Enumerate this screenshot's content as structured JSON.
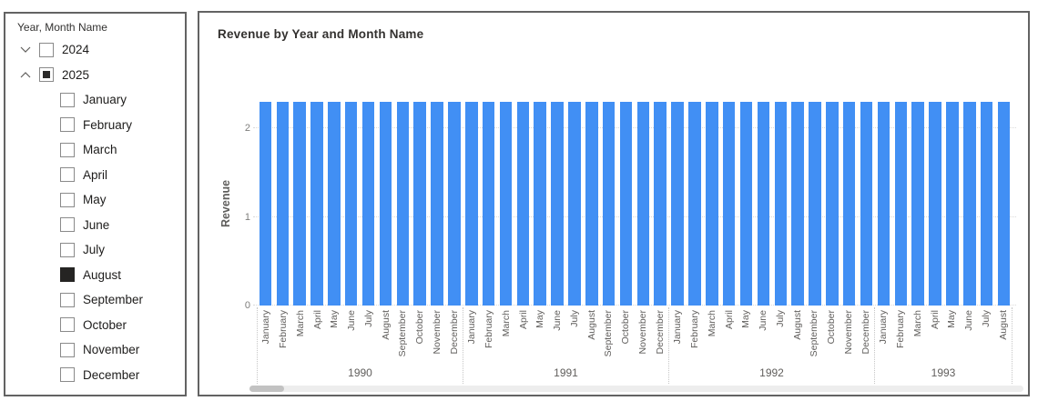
{
  "slicer": {
    "header": "Year, Month Name",
    "years": [
      {
        "label": "2024",
        "state": "unchecked",
        "chevron": "down"
      },
      {
        "label": "2025",
        "state": "partial",
        "chevron": "up"
      }
    ],
    "months": [
      {
        "label": "January",
        "checked": false
      },
      {
        "label": "February",
        "checked": false
      },
      {
        "label": "March",
        "checked": false
      },
      {
        "label": "April",
        "checked": false
      },
      {
        "label": "May",
        "checked": false
      },
      {
        "label": "June",
        "checked": false
      },
      {
        "label": "July",
        "checked": false
      },
      {
        "label": "August",
        "checked": true
      },
      {
        "label": "September",
        "checked": false
      },
      {
        "label": "October",
        "checked": false
      },
      {
        "label": "November",
        "checked": false
      },
      {
        "label": "December",
        "checked": false
      }
    ]
  },
  "chart": {
    "title": "Revenue by Year and Month Name",
    "y_axis_title": "Revenue"
  },
  "chart_data": {
    "type": "bar",
    "title": "Revenue by Year and Month Name",
    "ylabel": "Revenue",
    "xlabel": "",
    "y_ticks": [
      0,
      1,
      2
    ],
    "ylim": [
      0,
      2.3
    ],
    "grid": "horizontal-dotted",
    "legend": "none",
    "bar_color": "#418ff4",
    "bar_value": 2.3,
    "groups": [
      {
        "year": "1990",
        "months": [
          "January",
          "February",
          "March",
          "April",
          "May",
          "June",
          "July",
          "August",
          "September",
          "October",
          "November",
          "December"
        ]
      },
      {
        "year": "1991",
        "months": [
          "January",
          "February",
          "March",
          "April",
          "May",
          "June",
          "July",
          "August",
          "September",
          "October",
          "November",
          "December"
        ]
      },
      {
        "year": "1992",
        "months": [
          "January",
          "February",
          "March",
          "April",
          "May",
          "June",
          "July",
          "August",
          "September",
          "October",
          "November",
          "December"
        ]
      },
      {
        "year": "1993",
        "months": [
          "January",
          "February",
          "March",
          "April",
          "May",
          "June",
          "July",
          "August"
        ]
      }
    ]
  },
  "colors": {
    "bar": "#418ff4",
    "axis_text": "#605e5c",
    "title_text": "#33312f",
    "checkbox_fill": "#252423",
    "panel_border": "#636363"
  }
}
